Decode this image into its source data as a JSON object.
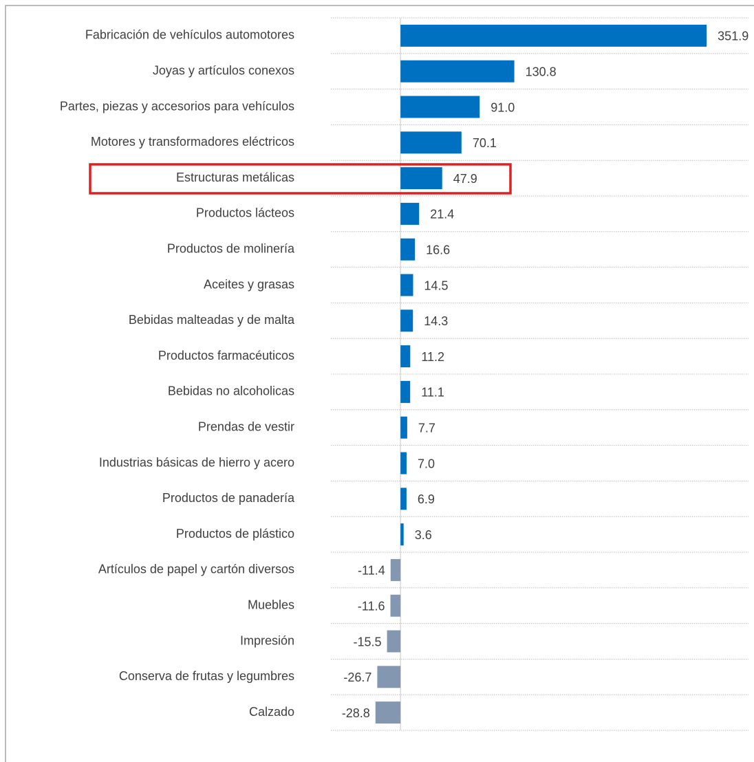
{
  "chart_data": {
    "type": "barh",
    "categories": [
      "Fabricación de vehículos automotores",
      "Joyas y artículos conexos",
      "Partes, piezas y accesorios para vehículos",
      "Motores y transformadores eléctricos",
      "Estructuras metálicas",
      "Productos lácteos",
      "Productos de molinería",
      "Aceites y grasas",
      "Bebidas malteadas y de malta",
      "Productos farmacéuticos",
      "Bebidas no alcoholicas",
      "Prendas de vestir",
      "Industrias básicas de hierro y acero",
      "Productos de panadería",
      "Productos de plástico",
      "Artículos de papel y cartón diversos",
      "Muebles",
      "Impresión",
      "Conserva de frutas y legumbres",
      "Calzado"
    ],
    "values": [
      351.9,
      130.8,
      91.0,
      70.1,
      47.9,
      21.4,
      16.6,
      14.5,
      14.3,
      11.2,
      11.1,
      7.7,
      7.0,
      6.9,
      3.6,
      -11.4,
      -11.6,
      -15.5,
      -26.7,
      -28.8
    ],
    "value_labels": [
      "351.9",
      "130.8",
      "91.0",
      "70.1",
      "47.9",
      "21.4",
      "16.6",
      "14.5",
      "14.3",
      "11.2",
      "11.1",
      "7.7",
      "7.0",
      "6.9",
      "3.6",
      "-11.4",
      "-11.6",
      "-15.5",
      "-26.7",
      "-28.8"
    ],
    "positive_color": "#0070c0",
    "negative_color": "#8497b0",
    "xlim": [
      -80,
      400
    ]
  }
}
